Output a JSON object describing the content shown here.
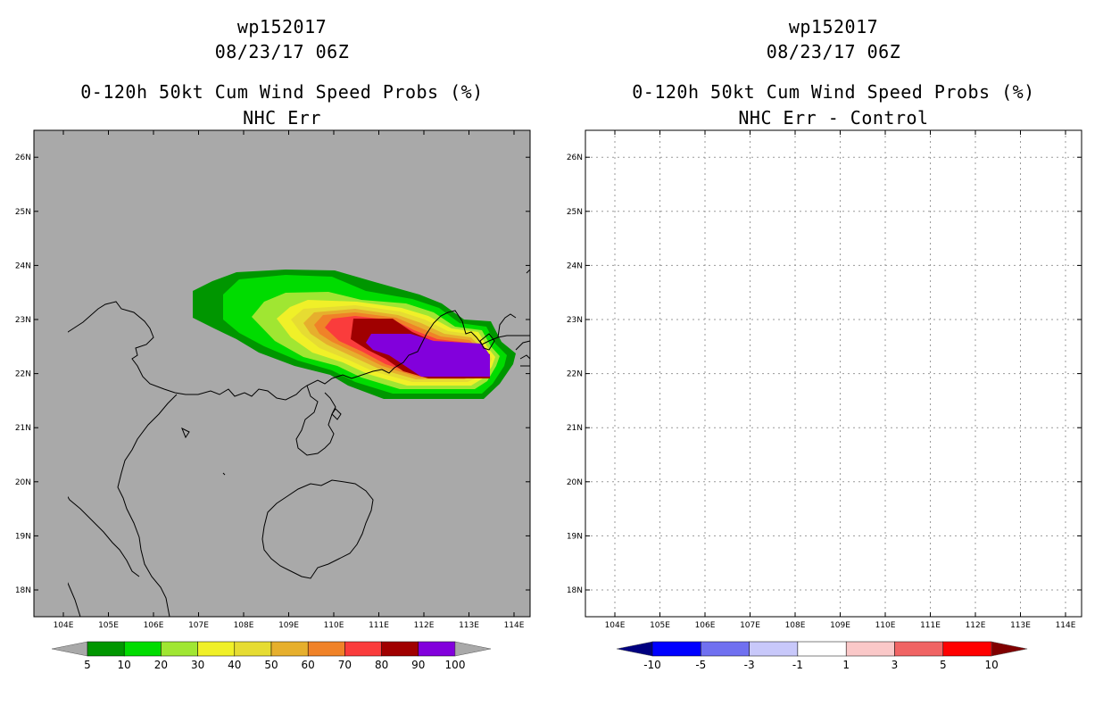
{
  "left_panel": {
    "storm_id": "wp152017",
    "datetime": "08/23/17 06Z",
    "product": "0-120h 50kt Cum Wind Speed Probs (%)",
    "subtitle": "NHC Err",
    "background_color": "#a9a9a9",
    "colorbar": {
      "labels": [
        "5",
        "10",
        "20",
        "30",
        "40",
        "50",
        "60",
        "70",
        "80",
        "90",
        "100"
      ],
      "colors": [
        "#009600",
        "#00dc00",
        "#a0e632",
        "#f0f028",
        "#e6dc32",
        "#e6af2d",
        "#f08228",
        "#fa3c3c",
        "#a00000",
        "#8200dc"
      ],
      "under_color": "#a9a9a9",
      "over_color": "#a9a9a9"
    }
  },
  "right_panel": {
    "storm_id": "wp152017",
    "datetime": "08/23/17 06Z",
    "product": "0-120h 50kt Cum Wind Speed Probs (%)",
    "subtitle": "NHC Err - Control",
    "background_color": "#ffffff",
    "colorbar": {
      "labels": [
        "-10",
        "-5",
        "-3",
        "-1",
        "1",
        "3",
        "5",
        "10"
      ],
      "colors": [
        "#0000ff",
        "#7070f0",
        "#c8c8fa",
        "#ffffff",
        "#fac8c8",
        "#f06464",
        "#ff0000"
      ],
      "under_color": "#000080",
      "over_color": "#800000"
    }
  },
  "axes": {
    "lon_labels": [
      "104E",
      "105E",
      "106E",
      "107E",
      "108E",
      "109E",
      "110E",
      "111E",
      "112E",
      "113E",
      "114E"
    ],
    "lat_labels": [
      "18N",
      "19N",
      "20N",
      "21N",
      "22N",
      "23N",
      "24N",
      "25N",
      "26N"
    ]
  }
}
